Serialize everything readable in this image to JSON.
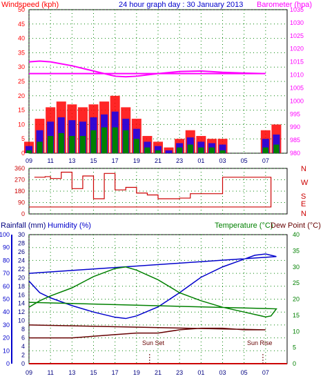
{
  "colors": {
    "wind": "#ff0000",
    "gust_blue": "#0000ff",
    "avg_green": "#008000",
    "baro": "#ff00ff",
    "dir": "#cc0000",
    "hum": "#0000cc",
    "temp": "#008000",
    "dew": "#660000",
    "rain": "#000080",
    "grid": "#008000"
  },
  "header": {
    "windspeed_label": "Windspeed (kph)",
    "title": "24 hour graph day : 30 January 2013",
    "barometer_label": "Barometer (hpa)"
  },
  "bottom_labels": {
    "rain_label": "Rainfall (mm)",
    "humidity_label": "Humidity (%)",
    "temperature_label": "Temperature (°C)",
    "dewpoint_label": "Dew Point (°C)",
    "sunset_label": "Sun Set",
    "sunrise_label": "Sun Rise"
  },
  "x_ticks": [
    "11",
    "13",
    "15",
    "17",
    "19",
    "21",
    "23",
    "01",
    "03",
    "05",
    "07",
    "09"
  ],
  "bottom_x_ticks": [
    "11",
    "13",
    "15",
    "17",
    "19",
    "21",
    "23",
    "01",
    "03",
    "05",
    "07",
    "09"
  ],
  "compass": [
    "N",
    "W",
    "S",
    "E",
    "N"
  ],
  "chart_data": [
    {
      "type": "line",
      "title": "24 hour graph day : 30 January 2013",
      "ylabel": "Windspeed (kph)",
      "ylim": [
        0,
        50
      ],
      "y_ticks": [
        0,
        5,
        10,
        15,
        20,
        25,
        30,
        35,
        40,
        45,
        50
      ],
      "y2label": "Barometer (hpa)",
      "y2lim": [
        980,
        1035
      ],
      "y2_ticks": [
        980,
        985,
        990,
        995,
        1000,
        1005,
        1010,
        1015,
        1020,
        1025,
        1030,
        1035
      ],
      "series": [
        {
          "name": "Barometer (hpa)",
          "x": [
            "09:00",
            "10:00",
            "11:00",
            "13:00",
            "15:00",
            "16:00",
            "17:00",
            "18:00",
            "19:00",
            "21:00",
            "23:00",
            "01:00",
            "03:00",
            "05:00",
            "07:00",
            "09:00"
          ],
          "values": [
            1015,
            1015.3,
            1015,
            1013.5,
            1011.5,
            1010.5,
            1009.5,
            1009.3,
            1009.5,
            1010.5,
            1011.3,
            1011.5,
            1011,
            1010.7,
            1010.5,
            1010.5
          ]
        },
        {
          "name": "Wind gust (kph)",
          "x": [
            "10:00",
            "11:00",
            "12:00",
            "13:00",
            "14:00",
            "15:00",
            "16:00",
            "17:00",
            "18:00",
            "19:00",
            "20:00",
            "21:00",
            "22:00",
            "23:00",
            "00:00",
            "01:00",
            "02:00",
            "03:00",
            "04:00",
            "05:00",
            "06:00",
            "07:00",
            "08:00",
            "09:00"
          ],
          "values": [
            12,
            16,
            18,
            17,
            16,
            17,
            18,
            20,
            16,
            12,
            6,
            4,
            2,
            5,
            8,
            6,
            5,
            5,
            0,
            0,
            0,
            8,
            10,
            4
          ]
        },
        {
          "name": "Average wind (kph)",
          "x": [
            "10:00",
            "11:00",
            "12:00",
            "13:00",
            "14:00",
            "15:00",
            "16:00",
            "17:00",
            "18:00",
            "19:00",
            "20:00",
            "21:00",
            "22:00",
            "23:00",
            "00:00",
            "01:00",
            "02:00",
            "03:00",
            "04:00",
            "05:00",
            "06:00",
            "07:00",
            "08:00",
            "09:00"
          ],
          "values": [
            4,
            6,
            7,
            6,
            6,
            8,
            9,
            9,
            8,
            5,
            2,
            1,
            0,
            2,
            3,
            2,
            2,
            1,
            0,
            0,
            0,
            2,
            3,
            1
          ]
        }
      ]
    },
    {
      "type": "line",
      "ylabel": "Wind direction",
      "ylim": [
        0,
        360
      ],
      "y_ticks": [
        0,
        90,
        180,
        270,
        360
      ],
      "series": [
        {
          "name": "Wind direction",
          "x": [
            "09:30",
            "10:30",
            "11:00",
            "12:00",
            "13:00",
            "14:00",
            "15:00",
            "16:00",
            "17:00",
            "18:00",
            "19:00",
            "20:00",
            "21:00",
            "22:00",
            "23:00",
            "00:00",
            "01:00",
            "02:00",
            "03:00",
            "04:00",
            "05:00",
            "06:00",
            "07:00",
            "07:30",
            "09:00"
          ],
          "values": [
            290,
            295,
            280,
            330,
            200,
            300,
            120,
            320,
            190,
            210,
            165,
            150,
            120,
            120,
            125,
            160,
            160,
            160,
            290,
            290,
            290,
            290,
            290,
            55,
            55
          ]
        }
      ]
    },
    {
      "type": "line",
      "ylabel": "Humidity (%)",
      "ylim": [
        0,
        100
      ],
      "y_ticks": [
        0,
        10,
        20,
        30,
        40,
        50,
        60,
        70,
        80,
        90,
        100
      ],
      "y_rain_label": "Rainfall (mm)",
      "y_rain_lim": [
        0,
        30
      ],
      "y_rain_ticks": [
        0,
        2,
        4,
        6,
        8,
        10,
        12,
        14,
        16,
        18,
        20,
        22,
        24,
        26,
        28,
        30
      ],
      "y2label": "Temperature (°C)",
      "y2lim": [
        0,
        40
      ],
      "y2_ticks": [
        0,
        5,
        10,
        15,
        20,
        25,
        30,
        35,
        40
      ],
      "series": [
        {
          "name": "Humidity (%)",
          "x": [
            "09:00",
            "10:00",
            "11:00",
            "13:00",
            "15:00",
            "17:00",
            "18:00",
            "19:00",
            "21:00",
            "23:00",
            "01:00",
            "03:00",
            "05:00",
            "06:00",
            "07:00",
            "08:00",
            "09:00"
          ],
          "values": [
            64,
            55,
            51,
            45,
            40,
            36,
            35,
            37,
            44,
            55,
            67,
            75,
            81,
            84,
            85,
            83,
            70
          ]
        },
        {
          "name": "Temperature (°C)",
          "x": [
            "09:00",
            "10:00",
            "11:00",
            "13:00",
            "15:00",
            "17:00",
            "18:00",
            "19:00",
            "21:00",
            "23:00",
            "01:00",
            "03:00",
            "05:00",
            "07:00",
            "07:30",
            "08:00",
            "09:00"
          ],
          "values": [
            17.5,
            19.5,
            21,
            23.5,
            27,
            29.5,
            30,
            29,
            26,
            22,
            19.5,
            17.5,
            16,
            14.5,
            14.8,
            17,
            19
          ]
        },
        {
          "name": "Dew Point (°C)",
          "x": [
            "09:00",
            "11:00",
            "13:00",
            "15:00",
            "17:00",
            "19:00",
            "21:00",
            "23:00",
            "01:00",
            "03:00",
            "05:00",
            "07:00",
            "09:00"
          ],
          "values": [
            8,
            8,
            8,
            8.5,
            9,
            9.5,
            9.5,
            10.5,
            11,
            11,
            10.5,
            10.5,
            12
          ]
        },
        {
          "name": "Rainfall (mm)",
          "x": [
            "09:00",
            "09:00"
          ],
          "values": [
            0,
            0
          ]
        }
      ]
    }
  ]
}
